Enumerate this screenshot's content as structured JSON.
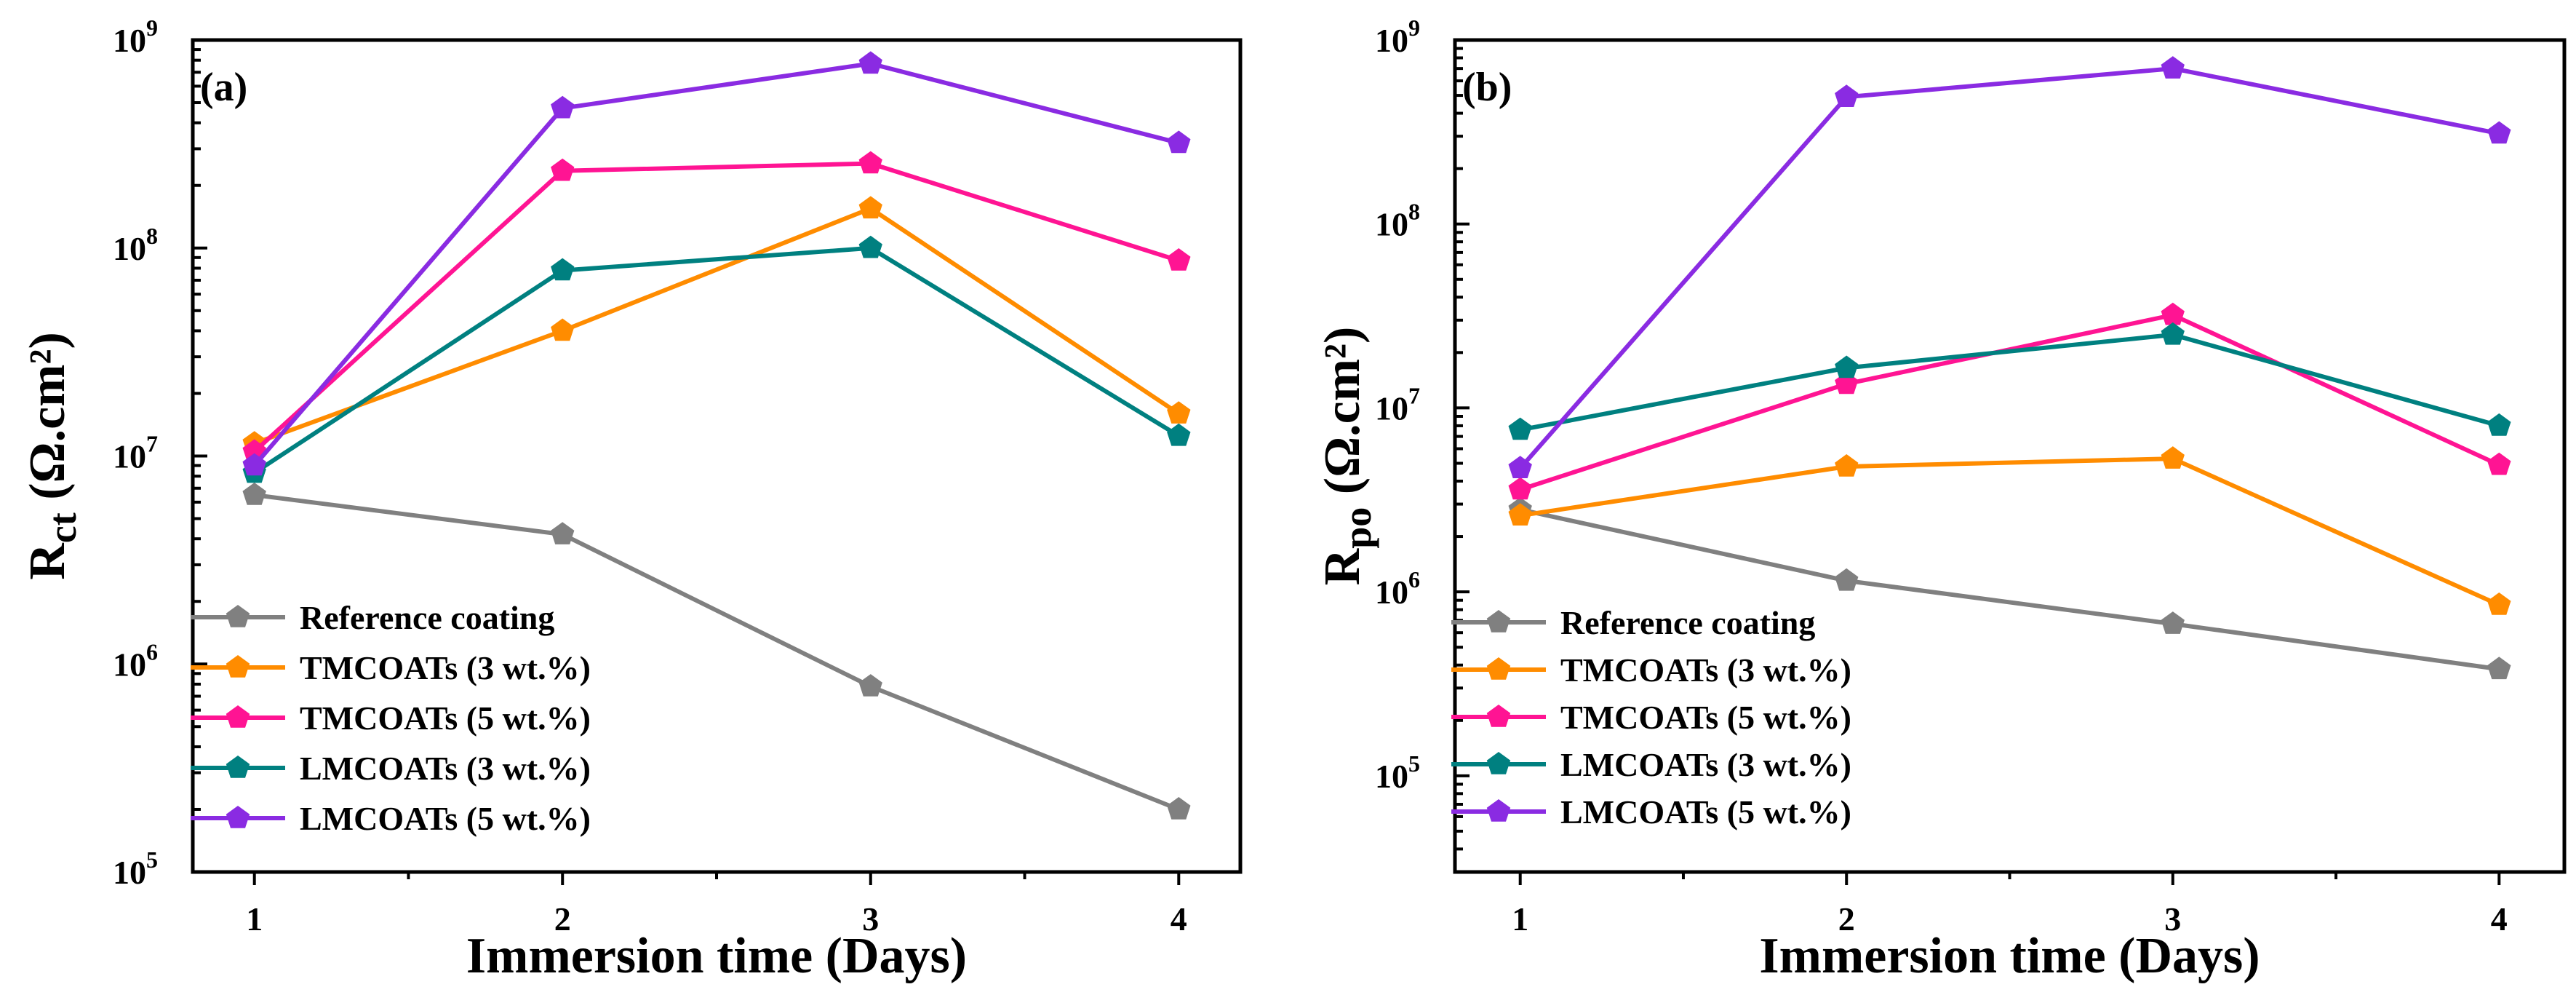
{
  "chart_data": [
    {
      "type": "line",
      "panel_label": "(a)",
      "title": "",
      "xlabel": "Immersion time (Days)",
      "ylabel_main": "R",
      "ylabel_sub": "ct",
      "ylabel_unit": " (Ω.cm²)",
      "yscale": "log",
      "ylim": [
        100000,
        1000000000
      ],
      "xlim": [
        0.8,
        4.2
      ],
      "x": [
        1,
        2,
        3,
        4
      ],
      "x_tick_labels": [
        "1",
        "2",
        "3",
        "4"
      ],
      "y_ticks": [
        {
          "value": 100000,
          "base": "10",
          "exp": "5"
        },
        {
          "value": 1000000,
          "base": "10",
          "exp": "6"
        },
        {
          "value": 10000000,
          "base": "10",
          "exp": "7"
        },
        {
          "value": 100000000,
          "base": "10",
          "exp": "8"
        },
        {
          "value": 1000000000,
          "base": "10",
          "exp": "9"
        }
      ],
      "legend_position": "bottom-left",
      "series": [
        {
          "name": "Reference coating",
          "color": "#808080",
          "values": [
            6500000,
            4200000,
            780000,
            200000
          ]
        },
        {
          "name": "TMCOATs (3 wt.%)",
          "color": "#FF8C00",
          "values": [
            11500000,
            40000000,
            155000000,
            16000000
          ]
        },
        {
          "name": "TMCOATs (5 wt.%)",
          "color": "#FF1493",
          "values": [
            10500000,
            235000000,
            255000000,
            87000000
          ]
        },
        {
          "name": "LMCOATs (3 wt.%)",
          "color": "#008080",
          "values": [
            8300000,
            78000000,
            100000000,
            12500000
          ]
        },
        {
          "name": "LMCOATs (5 wt.%)",
          "color": "#8A2BE2",
          "values": [
            9000000,
            470000000,
            770000000,
            320000000
          ]
        }
      ]
    },
    {
      "type": "line",
      "panel_label": "(b)",
      "title": "",
      "xlabel": "Immersion time (Days)",
      "ylabel_main": "R",
      "ylabel_sub": "po",
      "ylabel_unit": " (Ω.cm²)",
      "yscale": "log",
      "ylim": [
        30000,
        1000000000
      ],
      "xlim": [
        0.8,
        4.2
      ],
      "x": [
        1,
        2,
        3,
        4
      ],
      "x_tick_labels": [
        "1",
        "2",
        "3",
        "4"
      ],
      "y_ticks": [
        {
          "value": 100000,
          "base": "10",
          "exp": "5"
        },
        {
          "value": 1000000,
          "base": "10",
          "exp": "6"
        },
        {
          "value": 10000000,
          "base": "10",
          "exp": "7"
        },
        {
          "value": 100000000,
          "base": "10",
          "exp": "8"
        },
        {
          "value": 1000000000,
          "base": "10",
          "exp": "9"
        }
      ],
      "legend_position": "bottom-left",
      "series": [
        {
          "name": "Reference coating",
          "color": "#808080",
          "values": [
            2800000,
            1150000,
            670000,
            380000
          ]
        },
        {
          "name": "TMCOATs (3 wt.%)",
          "color": "#FF8C00",
          "values": [
            2600000,
            4800000,
            5300000,
            850000
          ]
        },
        {
          "name": "TMCOATs (5 wt.%)",
          "color": "#FF1493",
          "values": [
            3600000,
            13500000,
            32000000,
            4900000
          ]
        },
        {
          "name": "LMCOATs (3 wt.%)",
          "color": "#008080",
          "values": [
            7600000,
            16500000,
            25000000,
            8000000
          ]
        },
        {
          "name": "LMCOATs (5 wt.%)",
          "color": "#8A2BE2",
          "values": [
            4700000,
            490000000,
            700000000,
            310000000
          ]
        }
      ]
    }
  ]
}
